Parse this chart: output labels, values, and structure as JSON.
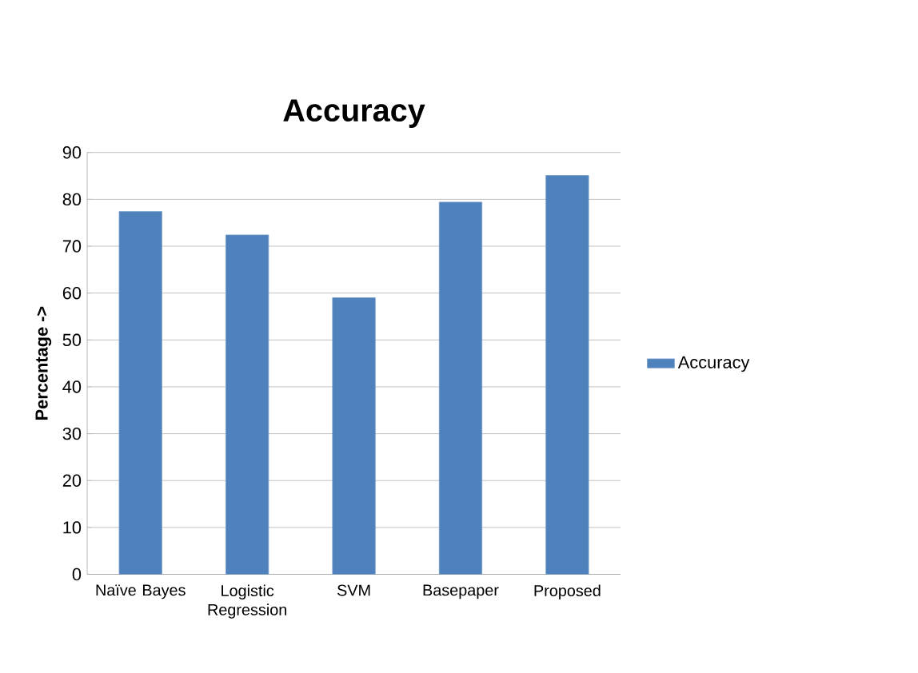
{
  "chart_data": {
    "type": "bar",
    "title": "Accuracy",
    "ylabel": "Percentage ->",
    "categories": [
      "Naïve Bayes",
      "Logistic Regression",
      "SVM",
      "Basepaper",
      "Proposed"
    ],
    "series": [
      {
        "name": "Accuracy",
        "color": "#4f81bd",
        "values": [
          77.4,
          72.4,
          59.0,
          79.4,
          85.1
        ]
      }
    ],
    "ylim": [
      0,
      90
    ],
    "yticks": [
      0,
      10,
      20,
      30,
      40,
      50,
      60,
      70,
      80,
      90
    ],
    "grid": "y",
    "legend": "right"
  }
}
